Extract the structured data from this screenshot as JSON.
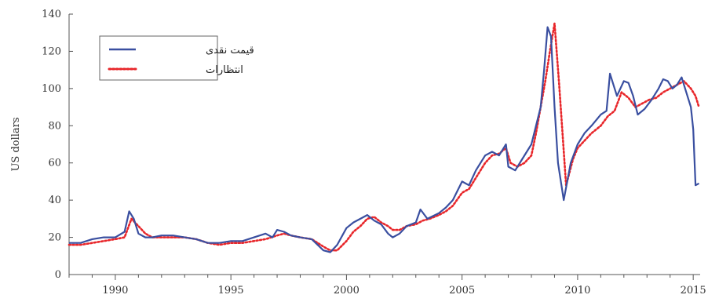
{
  "chart_data": {
    "type": "line",
    "title": "",
    "xlabel": "",
    "ylabel": "US dollars",
    "xlim": [
      1988.0,
      2015.3
    ],
    "ylim": [
      0,
      140
    ],
    "x_ticks": [
      1990,
      1995,
      2000,
      2005,
      2010,
      2015
    ],
    "x_tick_labels": [
      "1990",
      "1995",
      "2000",
      "2005",
      "2010",
      "2015"
    ],
    "y_ticks": [
      0,
      20,
      40,
      60,
      80,
      100,
      120,
      140
    ],
    "y_tick_labels": [
      "0",
      "20",
      "40",
      "60",
      "80",
      "100",
      "120",
      "140"
    ],
    "grid": false,
    "legend_position": "top-left",
    "colors": {
      "spot": "#3a4fa0",
      "expectations": "#e8262a"
    },
    "series": [
      {
        "name": "قیمت نقدی",
        "style": "solid",
        "x": [
          1988.0,
          1988.5,
          1989.0,
          1989.5,
          1990.0,
          1990.4,
          1990.6,
          1990.8,
          1991.0,
          1991.3,
          1991.6,
          1992.0,
          1992.5,
          1993.0,
          1993.5,
          1994.0,
          1994.5,
          1995.0,
          1995.5,
          1996.0,
          1996.5,
          1996.8,
          1997.0,
          1997.3,
          1997.6,
          1998.0,
          1998.5,
          1999.0,
          1999.3,
          1999.6,
          2000.0,
          2000.3,
          2000.6,
          2000.9,
          2001.2,
          2001.5,
          2001.8,
          2002.0,
          2002.3,
          2002.6,
          2003.0,
          2003.2,
          2003.5,
          2004.0,
          2004.3,
          2004.6,
          2005.0,
          2005.3,
          2005.6,
          2006.0,
          2006.3,
          2006.6,
          2006.9,
          2007.0,
          2007.3,
          2007.6,
          2008.0,
          2008.2,
          2008.4,
          2008.55,
          2008.7,
          2008.85,
          2009.0,
          2009.15,
          2009.4,
          2009.7,
          2010.0,
          2010.3,
          2010.6,
          2011.0,
          2011.25,
          2011.4,
          2011.7,
          2012.0,
          2012.2,
          2012.4,
          2012.6,
          2012.9,
          2013.2,
          2013.5,
          2013.7,
          2013.9,
          2014.1,
          2014.3,
          2014.5,
          2014.7,
          2014.9,
          2015.0,
          2015.1,
          2015.25
        ],
        "values": [
          17,
          17,
          19,
          20,
          20,
          23,
          34,
          30,
          22,
          20,
          20,
          21,
          21,
          20,
          19,
          17,
          17,
          18,
          18,
          20,
          22,
          20,
          24,
          23,
          21,
          20,
          19,
          13,
          12,
          16,
          25,
          28,
          30,
          32,
          29,
          27,
          22,
          20,
          22,
          26,
          28,
          35,
          30,
          33,
          36,
          40,
          50,
          48,
          56,
          64,
          66,
          64,
          70,
          58,
          56,
          62,
          70,
          80,
          90,
          110,
          133,
          128,
          90,
          60,
          40,
          60,
          70,
          76,
          80,
          86,
          88,
          108,
          96,
          104,
          103,
          96,
          86,
          89,
          94,
          100,
          105,
          104,
          100,
          102,
          106,
          98,
          90,
          78,
          48,
          49
        ]
      },
      {
        "name": "انتظارات",
        "style": "dotted",
        "x": [
          1988.0,
          1988.5,
          1989.0,
          1989.5,
          1990.0,
          1990.4,
          1990.7,
          1991.0,
          1991.3,
          1991.6,
          1992.0,
          1992.5,
          1993.0,
          1993.5,
          1994.0,
          1994.5,
          1995.0,
          1995.5,
          1996.0,
          1996.5,
          1997.0,
          1997.3,
          1997.6,
          1998.0,
          1998.5,
          1999.0,
          1999.3,
          1999.6,
          2000.0,
          2000.3,
          2000.6,
          2000.9,
          2001.2,
          2001.5,
          2001.8,
          2002.0,
          2002.3,
          2002.6,
          2003.0,
          2003.3,
          2003.6,
          2004.0,
          2004.3,
          2004.6,
          2005.0,
          2005.3,
          2005.6,
          2006.0,
          2006.3,
          2006.6,
          2006.9,
          2007.1,
          2007.4,
          2007.7,
          2008.0,
          2008.2,
          2008.4,
          2008.6,
          2008.8,
          2009.0,
          2009.2,
          2009.5,
          2009.8,
          2010.0,
          2010.3,
          2010.6,
          2011.0,
          2011.3,
          2011.6,
          2011.9,
          2012.2,
          2012.5,
          2012.8,
          2013.1,
          2013.4,
          2013.7,
          2014.0,
          2014.3,
          2014.6,
          2014.9,
          2015.1,
          2015.25
        ],
        "values": [
          16,
          16,
          17,
          18,
          19,
          20,
          30,
          26,
          22,
          20,
          20,
          20,
          20,
          19,
          17,
          16,
          17,
          17,
          18,
          19,
          21,
          22,
          21,
          20,
          19,
          15,
          13,
          13,
          18,
          23,
          26,
          30,
          31,
          28,
          26,
          24,
          24,
          26,
          27,
          29,
          30,
          32,
          34,
          37,
          44,
          46,
          52,
          60,
          64,
          65,
          68,
          60,
          58,
          60,
          64,
          76,
          90,
          104,
          120,
          135,
          102,
          48,
          62,
          68,
          72,
          76,
          80,
          85,
          88,
          98,
          95,
          90,
          92,
          94,
          95,
          98,
          100,
          102,
          104,
          100,
          96,
          90
        ]
      }
    ]
  }
}
